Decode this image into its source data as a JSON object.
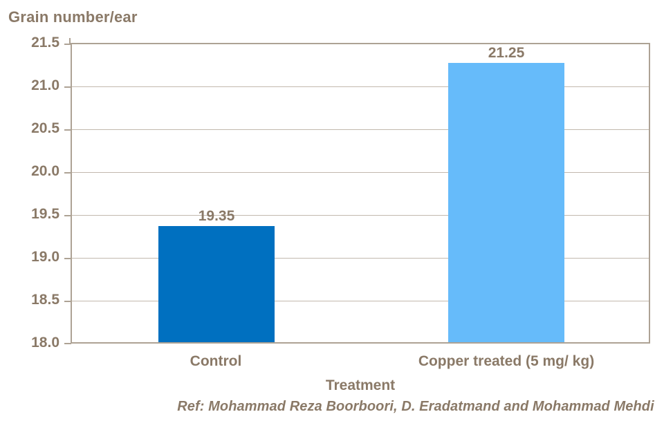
{
  "chart_data": {
    "type": "bar",
    "title": "Grain number/ear",
    "xlabel": "Treatment",
    "ylabel": "Grain number/ear",
    "categories": [
      "Control",
      "Copper treated (5 mg/ kg)"
    ],
    "values": [
      19.35,
      21.25
    ],
    "value_labels": [
      "19.35",
      "21.25"
    ],
    "ylim": [
      18.0,
      21.5
    ],
    "ytick_step": 0.5,
    "ytick_labels": [
      "21.5",
      "21.0",
      "20.5",
      "20.0",
      "19.5",
      "19.0",
      "18.5",
      "18.0"
    ],
    "grid": "horizontal gridlines on, full plot border, no vertical gridlines",
    "legend": "none",
    "bar_colors": [
      "#0070C0",
      "#66BBFA"
    ],
    "text_color": "#8A7967",
    "gridline_color": "#C2B8AD",
    "axis_color": "#ADA294",
    "reference": "Ref: Mohammad Reza Boorboori, D. Eradatmand and Mohammad Mehdi"
  }
}
